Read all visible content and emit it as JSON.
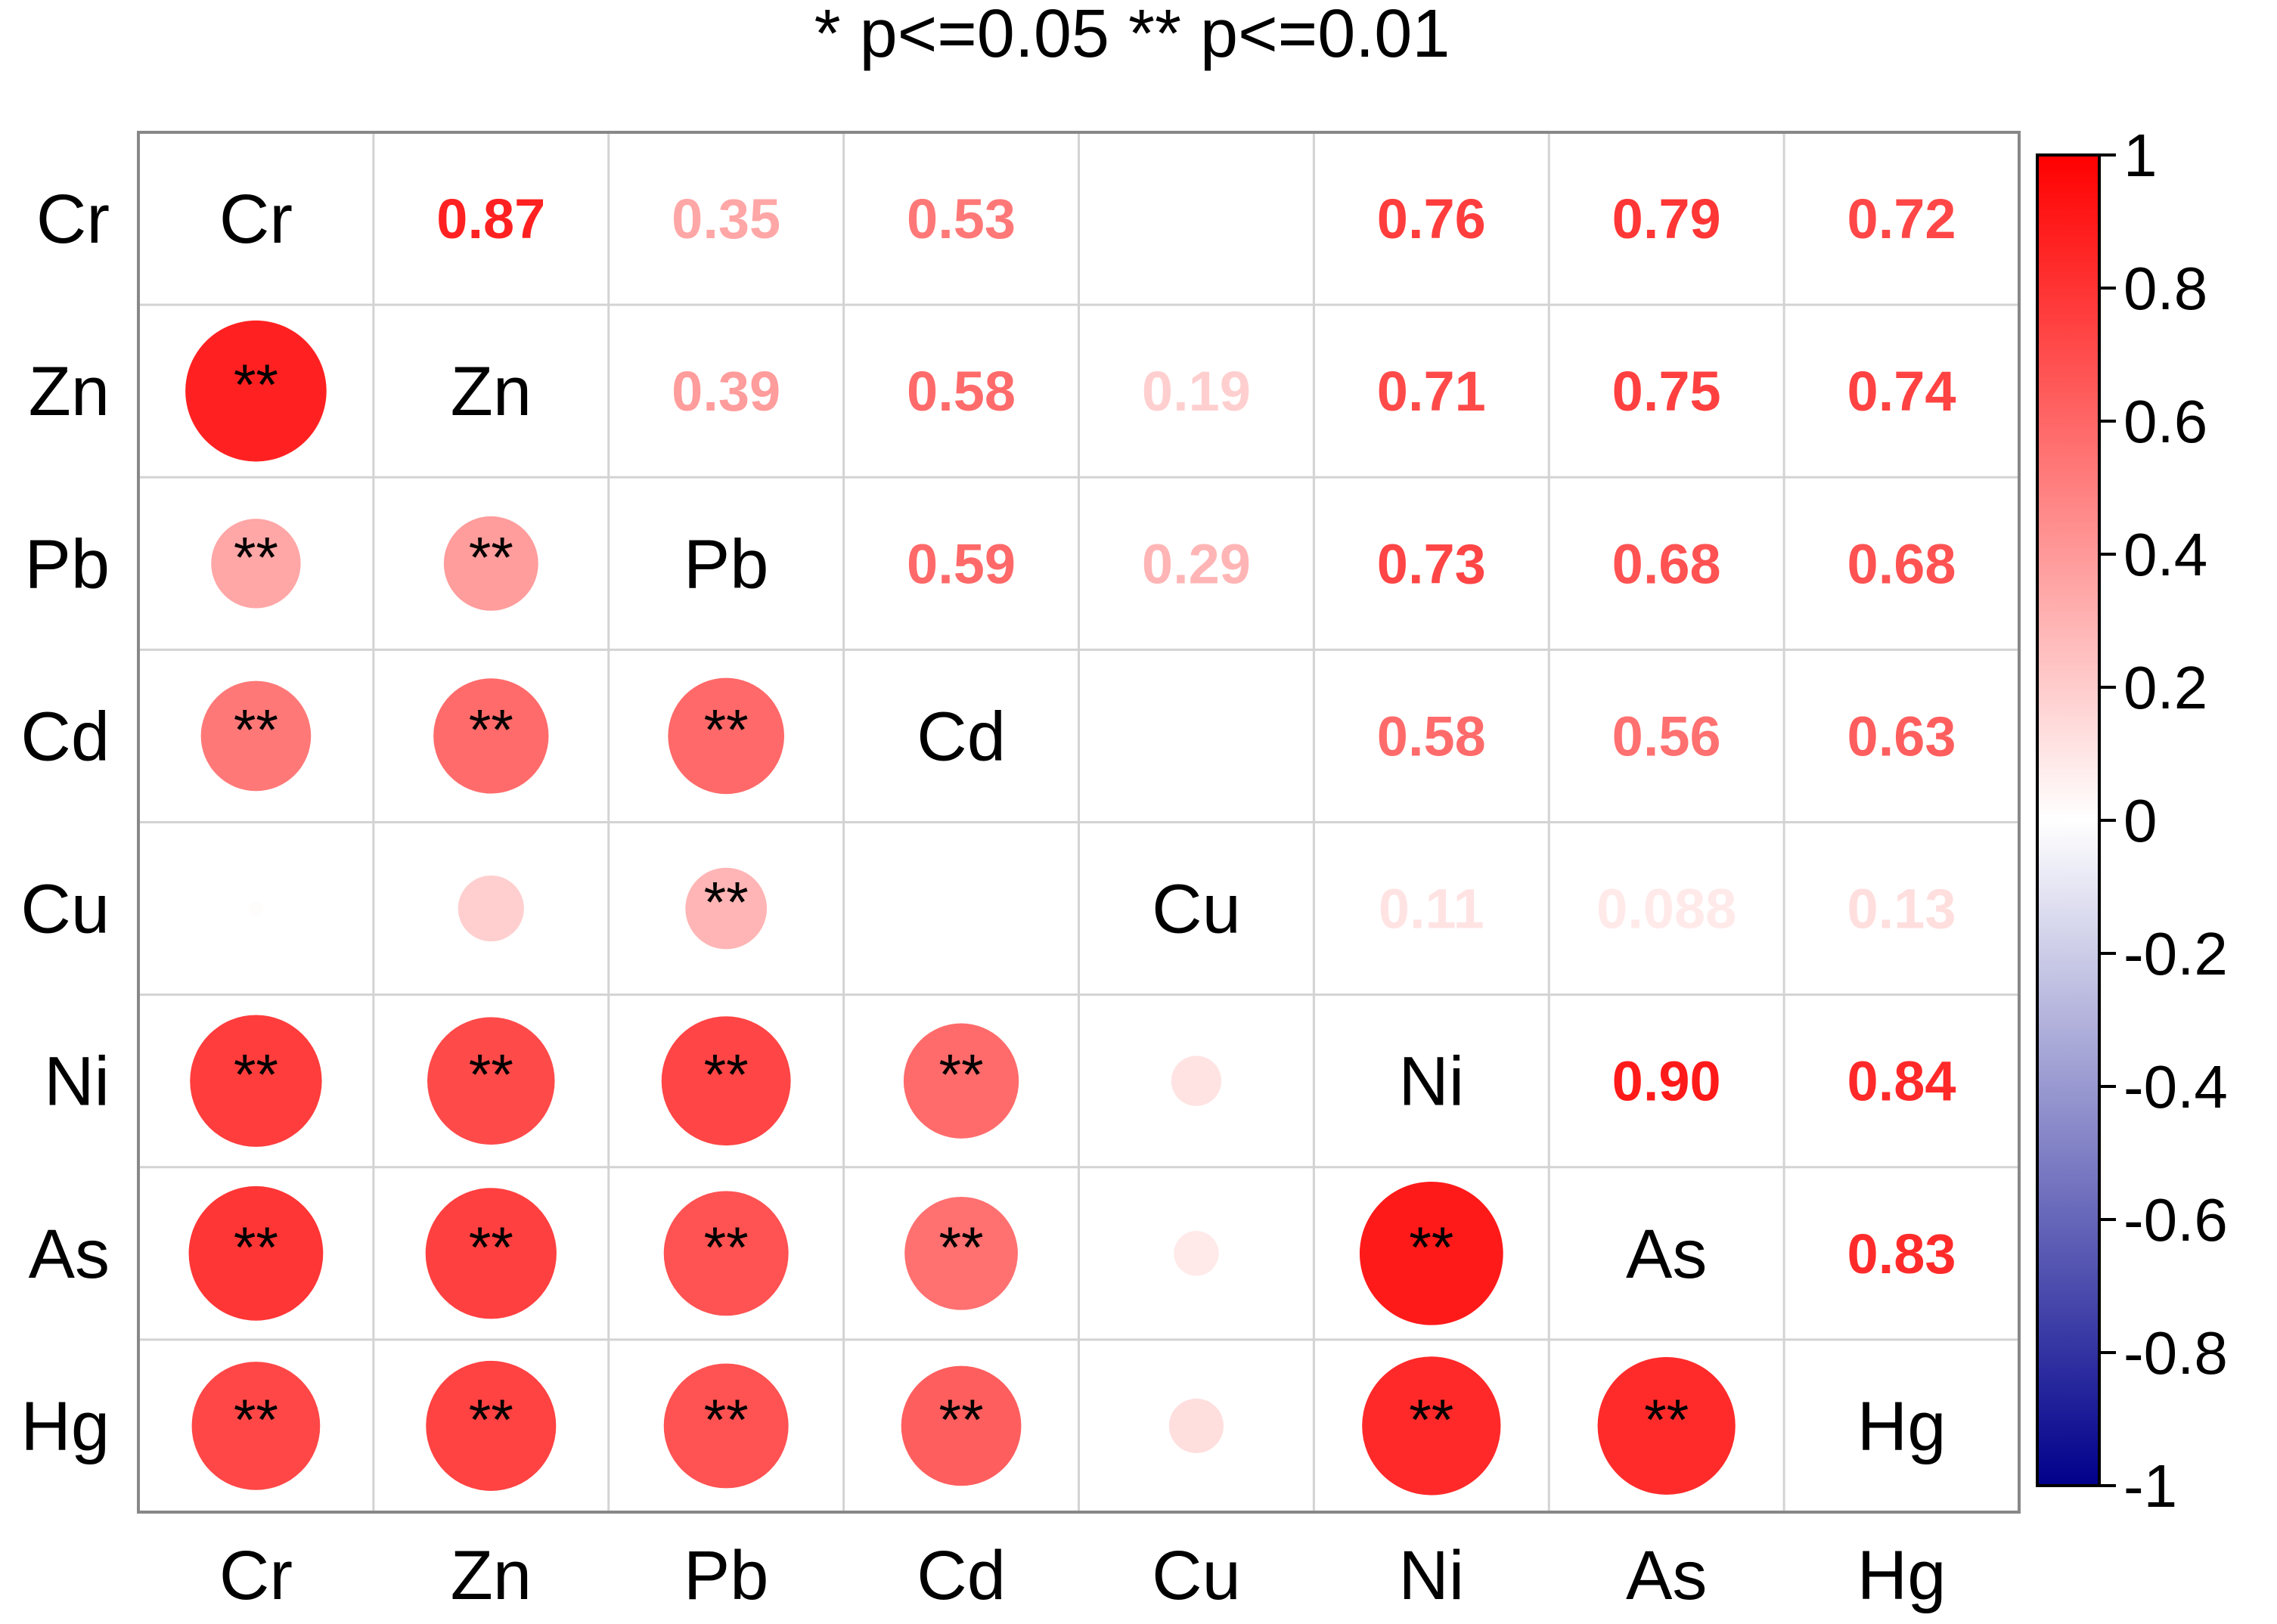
{
  "chart_data": {
    "type": "heatmap",
    "title": "* p<=0.05  ** p<=0.01",
    "variables": [
      "Cr",
      "Zn",
      "Pb",
      "Cd",
      "Cu",
      "Ni",
      "As",
      "Hg"
    ],
    "correlations": [
      [
        1.0,
        0.87,
        0.35,
        0.53,
        0.01,
        0.76,
        0.79,
        0.72
      ],
      [
        0.87,
        1.0,
        0.39,
        0.58,
        0.19,
        0.71,
        0.75,
        0.74
      ],
      [
        0.35,
        0.39,
        1.0,
        0.59,
        0.29,
        0.73,
        0.68,
        0.68
      ],
      [
        0.53,
        0.58,
        0.59,
        1.0,
        0.0,
        0.58,
        0.56,
        0.63
      ],
      [
        0.01,
        0.19,
        0.29,
        0.0,
        1.0,
        0.11,
        0.088,
        0.13
      ],
      [
        0.76,
        0.71,
        0.73,
        0.58,
        0.11,
        1.0,
        0.9,
        0.84
      ],
      [
        0.79,
        0.75,
        0.68,
        0.56,
        0.088,
        0.9,
        1.0,
        0.83
      ],
      [
        0.72,
        0.74,
        0.68,
        0.63,
        0.13,
        0.84,
        0.83,
        1.0
      ]
    ],
    "value_labels": [
      [
        "",
        "0.87",
        "0.35",
        "0.53",
        "",
        "0.76",
        "0.79",
        "0.72"
      ],
      [
        "0.87",
        "",
        "0.39",
        "0.58",
        "0.19",
        "0.71",
        "0.75",
        "0.74"
      ],
      [
        "0.35",
        "0.39",
        "",
        "0.59",
        "0.29",
        "0.73",
        "0.68",
        "0.68"
      ],
      [
        "0.53",
        "0.58",
        "0.59",
        "",
        "",
        "0.58",
        "0.56",
        "0.63"
      ],
      [
        "",
        "0.19",
        "0.29",
        "",
        "",
        "0.11",
        "0.088",
        "0.13"
      ],
      [
        "0.76",
        "0.71",
        "0.73",
        "0.58",
        "0.11",
        "",
        "0.90",
        "0.84"
      ],
      [
        "0.79",
        "0.75",
        "0.68",
        "0.56",
        "0.088",
        "0.90",
        "",
        "0.83"
      ],
      [
        "0.72",
        "0.74",
        "0.68",
        "0.63",
        "0.13",
        "0.84",
        "0.83",
        ""
      ]
    ],
    "significance": [
      [
        "",
        "**",
        "**",
        "**",
        "",
        "**",
        "**",
        "**"
      ],
      [
        "**",
        "",
        "**",
        "**",
        "",
        "**",
        "**",
        "**"
      ],
      [
        "**",
        "**",
        "",
        "**",
        "**",
        "**",
        "**",
        "**"
      ],
      [
        "**",
        "**",
        "**",
        "",
        "",
        "**",
        "**",
        "**"
      ],
      [
        "",
        "",
        "**",
        "",
        "",
        "",
        "",
        ""
      ],
      [
        "**",
        "**",
        "**",
        "**",
        "",
        "",
        "**",
        "**"
      ],
      [
        "**",
        "**",
        "**",
        "**",
        "",
        "**",
        "",
        "**"
      ],
      [
        "**",
        "**",
        "**",
        "**",
        "",
        "**",
        "**",
        ""
      ]
    ],
    "lower_triangle": "circles",
    "upper_triangle": "numbers",
    "diagonal": "variable names",
    "colorbar": {
      "range": [
        -1,
        1
      ],
      "ticks": [
        "1",
        "0.8",
        "0.6",
        "0.4",
        "0.2",
        "0",
        "-0.2",
        "-0.4",
        "-0.6",
        "-0.8",
        "-1"
      ],
      "tick_values": [
        1,
        0.8,
        0.6,
        0.4,
        0.2,
        0,
        -0.2,
        -0.4,
        -0.6,
        -0.8,
        -1
      ],
      "color_low": "#00008B",
      "color_mid": "#FFFFFF",
      "color_high": "#FF0000",
      "placement": "right"
    },
    "grid": true
  }
}
